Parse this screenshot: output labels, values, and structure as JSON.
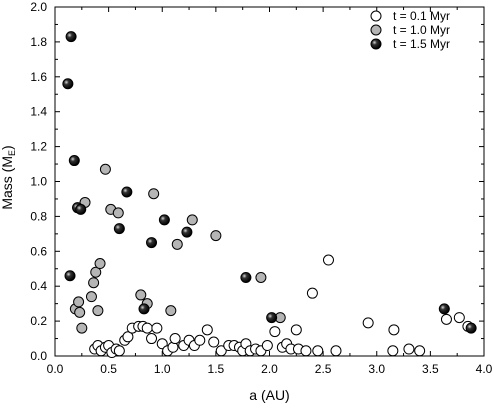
{
  "chart_data": {
    "type": "scatter",
    "title": "",
    "xlabel": "a (AU)",
    "ylabel_main": "Mass (M",
    "ylabel_sub": "E",
    "ylabel_close": ")",
    "xlim": [
      0.0,
      4.0
    ],
    "ylim": [
      0.0,
      2.0
    ],
    "x_ticks": [
      0.0,
      0.5,
      1.0,
      1.5,
      2.0,
      2.5,
      3.0,
      3.5,
      4.0
    ],
    "x_tick_labels": [
      "0.0",
      "0.5",
      "1.0",
      "1.5",
      "2.0",
      "2.5",
      "3.0",
      "3.5",
      "4.0"
    ],
    "y_ticks": [
      0.0,
      0.2,
      0.4,
      0.6,
      0.8,
      1.0,
      1.2,
      1.4,
      1.6,
      1.8,
      2.0
    ],
    "y_tick_labels": [
      "0.0",
      "0.2",
      "0.4",
      "0.6",
      "0.8",
      "1.0",
      "1.2",
      "1.4",
      "1.6",
      "1.8",
      "2.0"
    ],
    "grid": false,
    "legend_position": "top-right",
    "series": [
      {
        "name": "t = 0.1 Myr",
        "fill": "#ffffff",
        "stroke": "#000000",
        "style": "open",
        "points": [
          [
            0.37,
            0.04
          ],
          [
            0.4,
            0.06
          ],
          [
            0.43,
            0.03
          ],
          [
            0.47,
            0.05
          ],
          [
            0.5,
            0.06
          ],
          [
            0.53,
            0.02
          ],
          [
            0.57,
            0.04
          ],
          [
            0.6,
            0.03
          ],
          [
            0.65,
            0.09
          ],
          [
            0.68,
            0.11
          ],
          [
            0.72,
            0.16
          ],
          [
            0.78,
            0.17
          ],
          [
            0.82,
            0.17
          ],
          [
            0.86,
            0.16
          ],
          [
            0.9,
            0.1
          ],
          [
            0.95,
            0.16
          ],
          [
            1.0,
            0.07
          ],
          [
            1.05,
            0.03
          ],
          [
            1.1,
            0.05
          ],
          [
            1.12,
            0.1
          ],
          [
            1.2,
            0.06
          ],
          [
            1.25,
            0.09
          ],
          [
            1.3,
            0.06
          ],
          [
            1.35,
            0.09
          ],
          [
            1.42,
            0.15
          ],
          [
            1.48,
            0.08
          ],
          [
            1.55,
            0.03
          ],
          [
            1.62,
            0.06
          ],
          [
            1.67,
            0.06
          ],
          [
            1.72,
            0.05
          ],
          [
            1.75,
            0.03
          ],
          [
            1.78,
            0.07
          ],
          [
            1.82,
            0.03
          ],
          [
            1.87,
            0.04
          ],
          [
            1.92,
            0.03
          ],
          [
            1.98,
            0.06
          ],
          [
            2.05,
            0.14
          ],
          [
            2.12,
            0.05
          ],
          [
            2.16,
            0.07
          ],
          [
            2.2,
            0.04
          ],
          [
            2.25,
            0.15
          ],
          [
            2.27,
            0.04
          ],
          [
            2.34,
            0.03
          ],
          [
            2.4,
            0.36
          ],
          [
            2.45,
            0.03
          ],
          [
            2.55,
            0.55
          ],
          [
            2.62,
            0.03
          ],
          [
            2.92,
            0.19
          ],
          [
            3.15,
            0.03
          ],
          [
            3.16,
            0.15
          ],
          [
            3.3,
            0.04
          ],
          [
            3.4,
            0.03
          ],
          [
            3.65,
            0.21
          ],
          [
            3.77,
            0.22
          ],
          [
            3.85,
            0.17
          ]
        ]
      },
      {
        "name": "t = 1.0 Myr",
        "fill": "#b5b5b5",
        "stroke": "#000000",
        "style": "filled",
        "points": [
          [
            0.19,
            0.27
          ],
          [
            0.22,
            0.31
          ],
          [
            0.23,
            0.25
          ],
          [
            0.25,
            0.16
          ],
          [
            0.28,
            0.88
          ],
          [
            0.34,
            0.34
          ],
          [
            0.36,
            0.42
          ],
          [
            0.38,
            0.48
          ],
          [
            0.4,
            0.26
          ],
          [
            0.42,
            0.53
          ],
          [
            0.47,
            1.07
          ],
          [
            0.52,
            0.84
          ],
          [
            0.59,
            0.82
          ],
          [
            0.8,
            0.35
          ],
          [
            0.86,
            0.3
          ],
          [
            0.92,
            0.93
          ],
          [
            1.08,
            0.26
          ],
          [
            1.14,
            0.64
          ],
          [
            1.28,
            0.78
          ],
          [
            1.5,
            0.69
          ],
          [
            1.92,
            0.45
          ],
          [
            2.1,
            0.22
          ]
        ]
      },
      {
        "name": "t = 1.5 Myr",
        "fill": "#111111",
        "stroke": "#000000",
        "style": "dark",
        "points": [
          [
            0.12,
            1.56
          ],
          [
            0.15,
            1.83
          ],
          [
            0.18,
            1.12
          ],
          [
            0.21,
            0.85
          ],
          [
            0.24,
            0.84
          ],
          [
            0.14,
            0.46
          ],
          [
            0.6,
            0.73
          ],
          [
            0.67,
            0.94
          ],
          [
            0.83,
            0.27
          ],
          [
            0.9,
            0.65
          ],
          [
            1.02,
            0.78
          ],
          [
            1.23,
            0.71
          ],
          [
            1.78,
            0.45
          ],
          [
            2.02,
            0.22
          ],
          [
            3.63,
            0.27
          ],
          [
            3.88,
            0.16
          ]
        ]
      }
    ]
  }
}
